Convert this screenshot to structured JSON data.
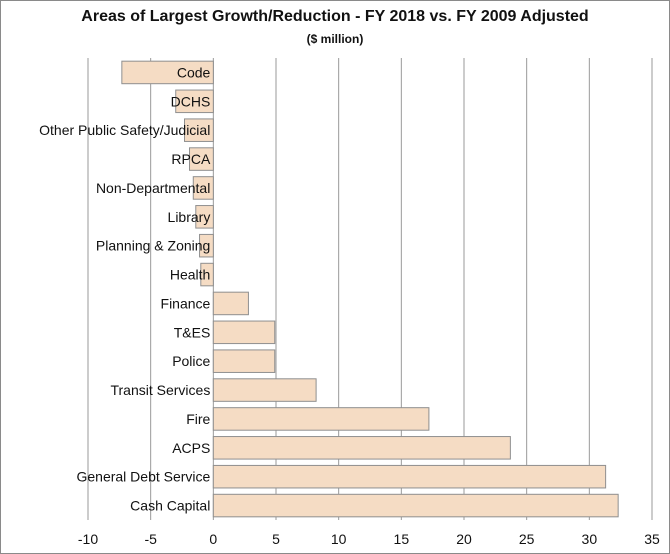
{
  "chart_data": {
    "type": "bar",
    "orientation": "horizontal",
    "title": "Areas of Largest Growth/Reduction - FY 2018 vs. FY 2009 Adjusted",
    "subtitle": "($ million)",
    "categories": [
      "Code",
      "DCHS",
      "Other Public Safety/Judicial",
      "RPCA",
      "Non-Departmental",
      "Library",
      "Planning & Zoning",
      "Health",
      "Finance",
      "T&ES",
      "Police",
      "Transit Services",
      "Fire",
      "ACPS",
      "General Debt Service",
      "Cash Capital"
    ],
    "values": [
      -7.3,
      -3.0,
      -2.3,
      -1.9,
      -1.6,
      -1.4,
      -1.1,
      -1.0,
      2.8,
      4.9,
      4.9,
      8.2,
      17.2,
      23.7,
      31.3,
      32.3
    ],
    "xlim": [
      -10,
      35
    ],
    "xticks": [
      "-10",
      "-5",
      "0",
      "5",
      "10",
      "15",
      "20",
      "25",
      "30",
      "35"
    ],
    "grid": "vertical",
    "bar_color": "#f5dcc4",
    "xlabel": "",
    "ylabel": ""
  }
}
